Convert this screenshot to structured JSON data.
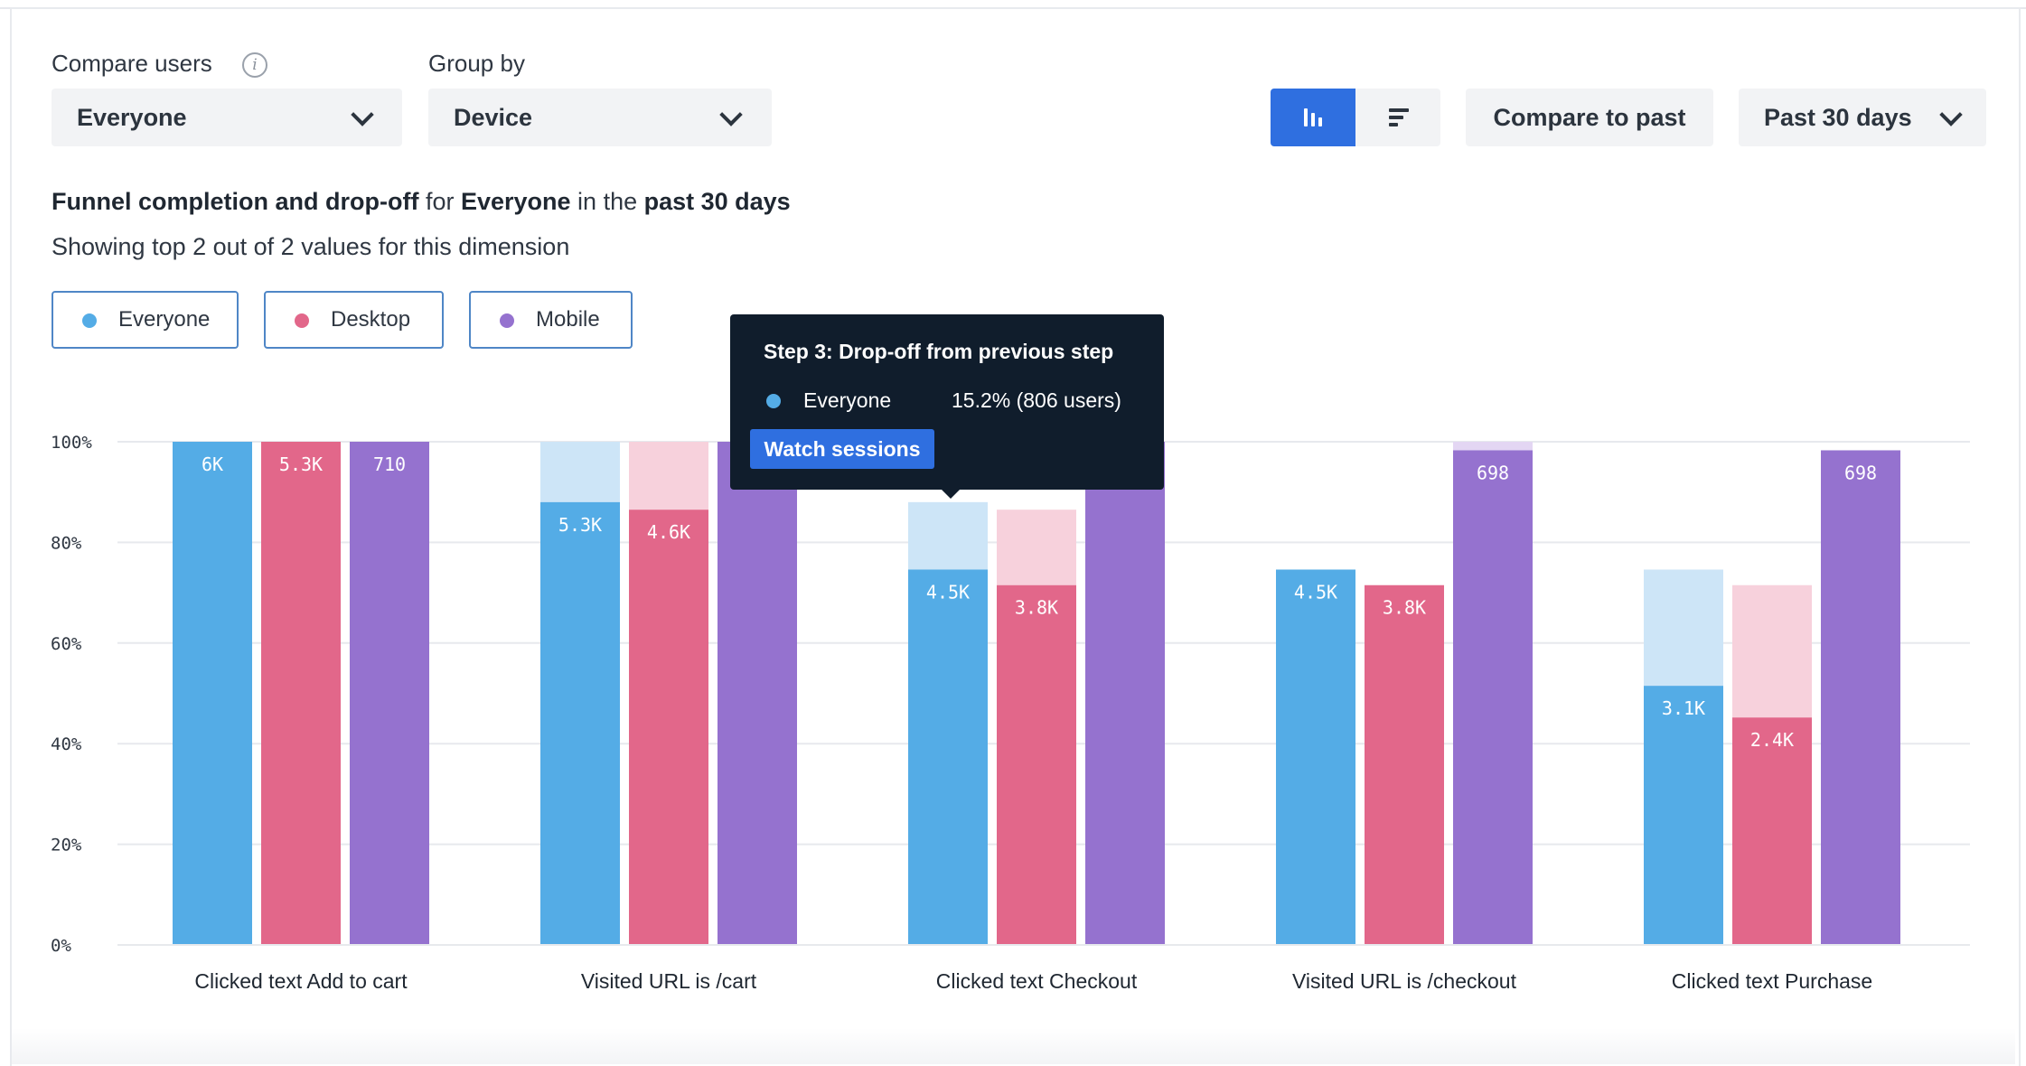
{
  "controls": {
    "compare_users_label": "Compare users",
    "compare_users_value": "Everyone",
    "group_by_label": "Group by",
    "group_by_value": "Device",
    "view_bar_icon": "bar-chart-icon",
    "view_list_icon": "sort-list-icon",
    "compare_past_label": "Compare to past",
    "date_range_value": "Past 30 days"
  },
  "description": {
    "line1_a": "Funnel completion and drop-off",
    "line1_b": " for ",
    "line1_c": "Everyone",
    "line1_d": " in the ",
    "line1_e": "past 30 days",
    "line2": "Showing top 2 out of 2 values for this dimension"
  },
  "legend": [
    {
      "label": "Everyone",
      "color": "#54ace6"
    },
    {
      "label": "Desktop",
      "color": "#e2678a"
    },
    {
      "label": "Mobile",
      "color": "#9572cf"
    }
  ],
  "tooltip": {
    "title": "Step 3: Drop-off from previous step",
    "series": "Everyone",
    "value": "15.2% (806 users)",
    "button": "Watch sessions"
  },
  "chart_data": {
    "type": "bar",
    "y_ticks": [
      "0%",
      "20%",
      "40%",
      "60%",
      "80%",
      "100%"
    ],
    "ylim": [
      0,
      100
    ],
    "grid": true,
    "categories": [
      "Clicked text Add to cart",
      "Visited URL is /cart",
      "Clicked text Checkout",
      "Visited URL is /checkout",
      "Clicked text Purchase"
    ],
    "series": [
      {
        "name": "Everyone",
        "color": "#54ace6",
        "faded": "#cde5f7",
        "values": [
          100,
          88,
          74.6,
          74.6,
          51.5
        ],
        "previous": [
          100,
          100,
          88,
          74.6,
          74.6
        ],
        "labels": [
          "6K",
          "5.3K",
          "4.5K",
          "4.5K",
          "3.1K"
        ]
      },
      {
        "name": "Desktop",
        "color": "#e2678a",
        "faded": "#f7d1dc",
        "values": [
          100,
          86.5,
          71.5,
          71.5,
          45.2
        ],
        "previous": [
          100,
          100,
          86.5,
          71.5,
          71.5
        ],
        "labels": [
          "5.3K",
          "4.6K",
          "3.8K",
          "3.8K",
          "2.4K"
        ]
      },
      {
        "name": "Mobile",
        "color": "#9572cf",
        "faded": "#e3d6f3",
        "values": [
          100,
          100,
          100,
          98.3,
          98.3
        ],
        "previous": [
          100,
          100,
          100,
          100,
          98.3
        ],
        "labels": [
          "710",
          "",
          "",
          "698",
          "698"
        ]
      }
    ]
  }
}
